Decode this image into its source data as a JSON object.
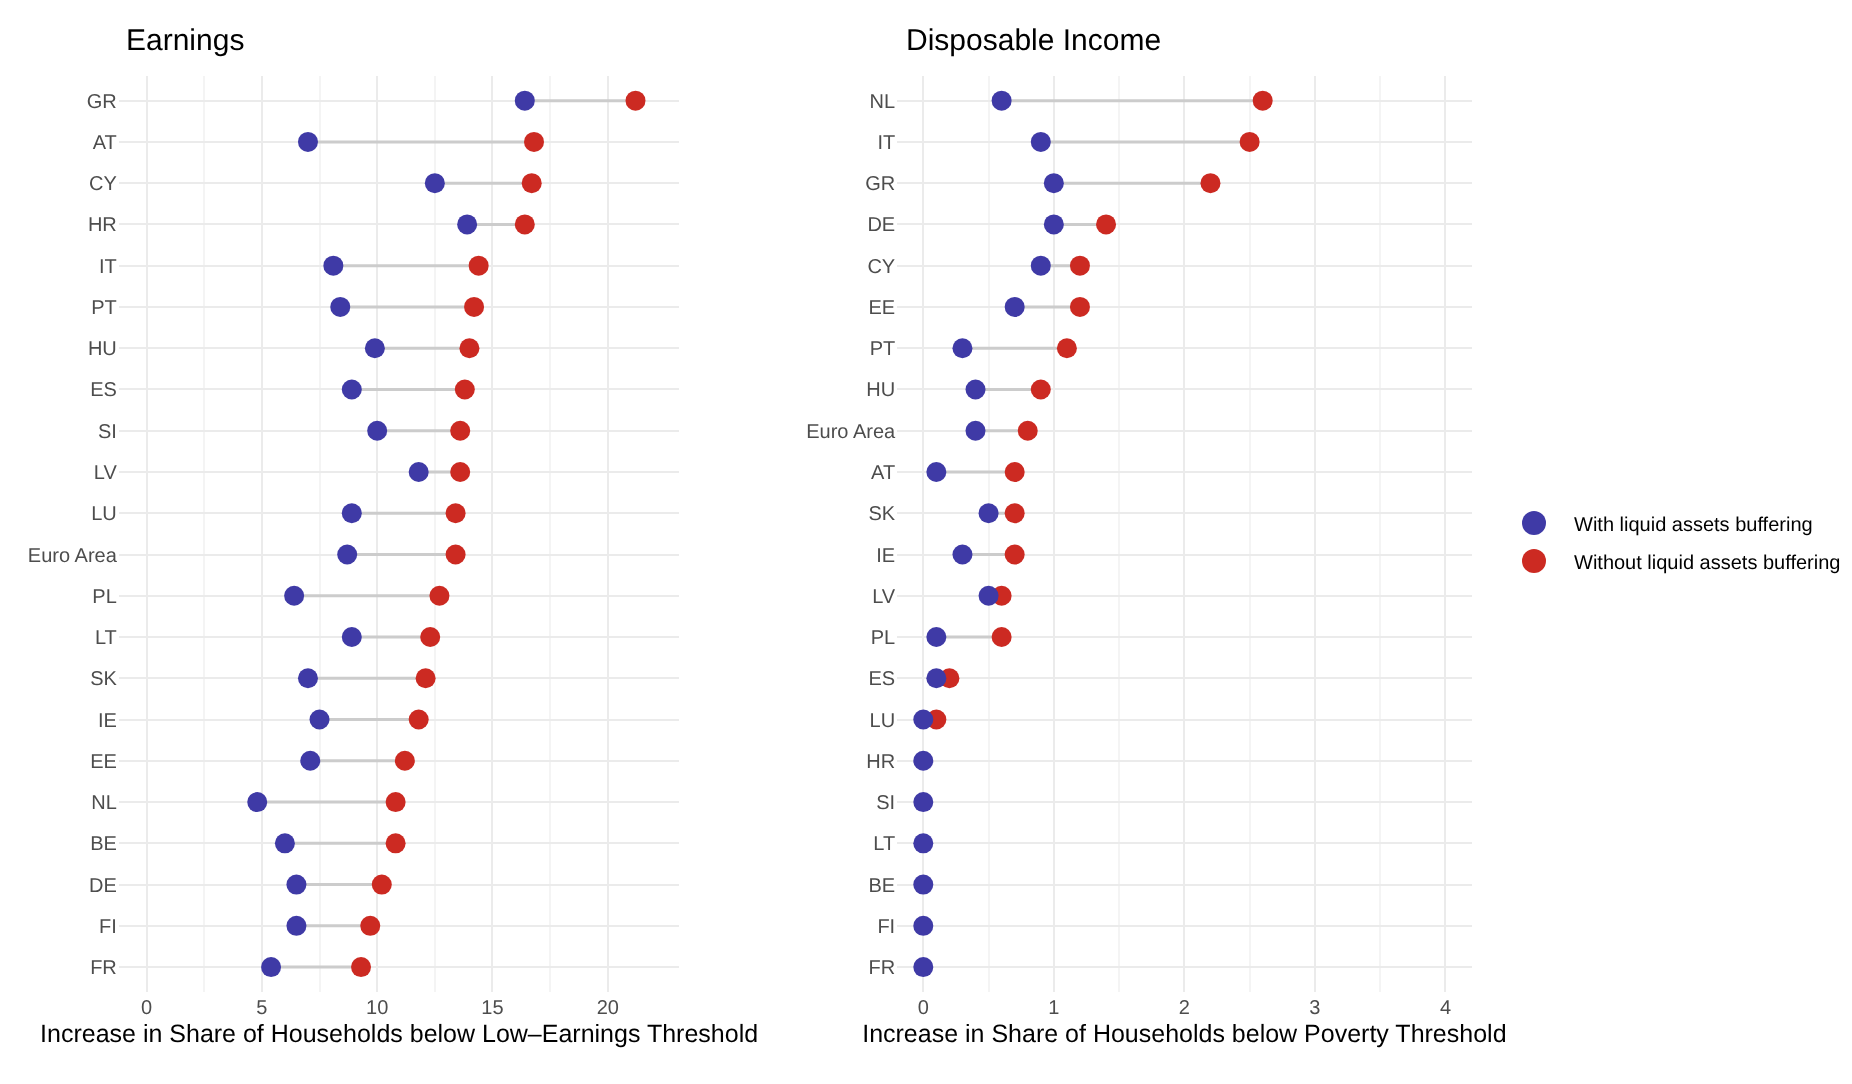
{
  "chart_data": [
    {
      "type": "scatter",
      "title": "Earnings",
      "xlabel": "Increase in Share of Households below Low–Earnings Threshold",
      "orientation": "horizontal",
      "categories": [
        "GR",
        "AT",
        "CY",
        "HR",
        "IT",
        "PT",
        "HU",
        "ES",
        "SI",
        "LV",
        "LU",
        "Euro Area",
        "PL",
        "LT",
        "SK",
        "IE",
        "EE",
        "NL",
        "BE",
        "DE",
        "FI",
        "FR"
      ],
      "series": [
        {
          "name": "With liquid assets buffering",
          "color": "#3f3aa6",
          "values": [
            16.4,
            7.0,
            12.5,
            13.9,
            8.1,
            8.4,
            9.9,
            8.9,
            10.0,
            11.8,
            8.9,
            8.7,
            6.4,
            8.9,
            7.0,
            7.5,
            7.1,
            4.8,
            6.0,
            6.5,
            6.5,
            5.4
          ]
        },
        {
          "name": "Without liquid assets buffering",
          "color": "#cc2a22",
          "values": [
            21.2,
            16.8,
            16.7,
            16.4,
            14.4,
            14.2,
            14.0,
            13.8,
            13.6,
            13.6,
            13.4,
            13.4,
            12.7,
            12.3,
            12.1,
            11.8,
            11.2,
            10.8,
            10.8,
            10.2,
            9.7,
            9.3
          ]
        }
      ],
      "xlim": [
        -1.2,
        23.1
      ],
      "xticks": [
        0,
        5,
        10,
        15,
        20
      ],
      "grid": true,
      "marker": "circle",
      "legend": "right"
    },
    {
      "type": "scatter",
      "title": "Disposable Income",
      "xlabel": "Increase in Share of Households below Poverty Threshold",
      "orientation": "horizontal",
      "categories": [
        "NL",
        "IT",
        "GR",
        "DE",
        "CY",
        "EE",
        "PT",
        "HU",
        "Euro Area",
        "AT",
        "SK",
        "IE",
        "LV",
        "PL",
        "ES",
        "LU",
        "HR",
        "SI",
        "LT",
        "BE",
        "FI",
        "FR"
      ],
      "series": [
        {
          "name": "With liquid assets buffering",
          "color": "#3f3aa6",
          "values": [
            0.6,
            0.9,
            1.0,
            1.0,
            0.9,
            0.7,
            0.3,
            0.4,
            0.4,
            0.1,
            0.5,
            0.3,
            0.5,
            0.1,
            0.1,
            0,
            0,
            0,
            0,
            0,
            0,
            0
          ]
        },
        {
          "name": "Without liquid assets buffering",
          "color": "#cc2a22",
          "values": [
            2.6,
            2.5,
            2.2,
            1.4,
            1.2,
            1.2,
            1.1,
            0.9,
            0.8,
            0.7,
            0.7,
            0.7,
            0.6,
            0.6,
            0.2,
            0.1,
            null,
            null,
            null,
            null,
            null,
            null
          ]
        }
      ],
      "xlim": [
        -0.2,
        4.2
      ],
      "xticks": [
        0,
        1,
        2,
        3,
        4
      ],
      "grid": true,
      "marker": "circle",
      "legend": "right"
    }
  ]
}
